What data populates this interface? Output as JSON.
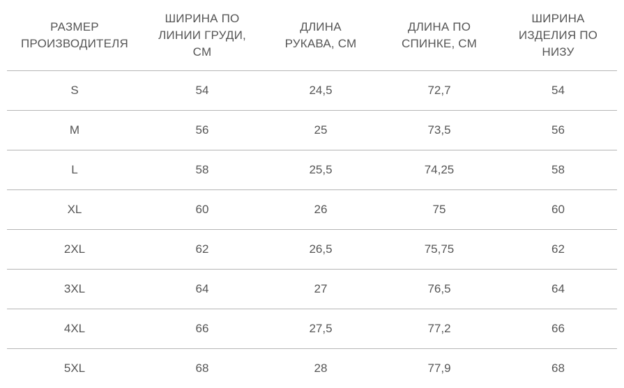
{
  "table": {
    "headers": [
      [
        "РАЗМЕР",
        "ПРОИЗВОДИТЕЛЯ"
      ],
      [
        "ШИРИНА ПО",
        "ЛИНИИ ГРУДИ,",
        "СМ"
      ],
      [
        "ДЛИНА",
        "РУКАВА, СМ"
      ],
      [
        "ДЛИНА ПО",
        "СПИНКЕ, СМ"
      ],
      [
        "ШИРИНА",
        "ИЗДЕЛИЯ ПО",
        "НИЗУ"
      ]
    ],
    "rows": [
      [
        "S",
        "54",
        "24,5",
        "72,7",
        "54"
      ],
      [
        "M",
        "56",
        "25",
        "73,5",
        "56"
      ],
      [
        "L",
        "58",
        "25,5",
        "74,25",
        "58"
      ],
      [
        "XL",
        "60",
        "26",
        "75",
        "60"
      ],
      [
        "2XL",
        "62",
        "26,5",
        "75,75",
        "62"
      ],
      [
        "3XL",
        "64",
        "27",
        "76,5",
        "64"
      ],
      [
        "4XL",
        "66",
        "27,5",
        "77,2",
        "66"
      ],
      [
        "5XL",
        "68",
        "28",
        "77,9",
        "68"
      ]
    ]
  },
  "colors": {
    "text": "#555555",
    "divider": "#b5b5b5",
    "background": "#ffffff"
  }
}
